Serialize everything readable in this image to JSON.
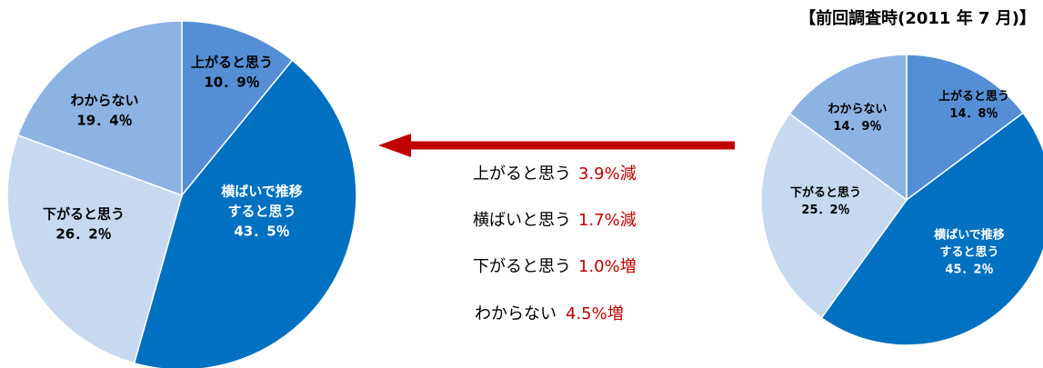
{
  "previous_title": "【前回調査時(2011 年 7 月)】",
  "colors": {
    "up": "#558ed5",
    "flat": "#0070c0",
    "down": "#c6d9f1",
    "unknown": "#8db3e2",
    "arrow": "#c00000",
    "change_text": "#c00000",
    "label_dark": "#000000",
    "label_light": "#ffffff"
  },
  "chart_data": [
    {
      "type": "pie",
      "name": "current",
      "slices": [
        {
          "key": "up",
          "label": [
            "上がると思う"
          ],
          "value_text": "10．9％",
          "value": 10.9
        },
        {
          "key": "flat",
          "label": [
            "横ばいで推移",
            "すると思う"
          ],
          "value_text": "43．5％",
          "value": 43.5
        },
        {
          "key": "down",
          "label": [
            "下がると思う"
          ],
          "value_text": "26．2％",
          "value": 26.2
        },
        {
          "key": "unknown",
          "label": [
            "わからない"
          ],
          "value_text": "19．4％",
          "value": 19.4
        }
      ]
    },
    {
      "type": "pie",
      "name": "previous",
      "title": "【前回調査時(2011 年 7 月)】",
      "slices": [
        {
          "key": "up",
          "label": [
            "上がると思う"
          ],
          "value_text": "14．8％",
          "value": 14.8
        },
        {
          "key": "flat",
          "label": [
            "横ばいで推移",
            "すると思う"
          ],
          "value_text": "45．2％",
          "value": 45.2
        },
        {
          "key": "down",
          "label": [
            "下がると思う"
          ],
          "value_text": "25．2％",
          "value": 25.2
        },
        {
          "key": "unknown",
          "label": [
            "わからない"
          ],
          "value_text": "14．9％",
          "value": 14.9
        }
      ]
    }
  ],
  "comparison": [
    {
      "label": "上がると思う",
      "change": "3.9%減"
    },
    {
      "label": "横ばいと思う",
      "change": "1.7%減"
    },
    {
      "label": "下がると思う",
      "change": "1.0%増"
    },
    {
      "label": "わからない",
      "change": "4.5%増"
    }
  ]
}
